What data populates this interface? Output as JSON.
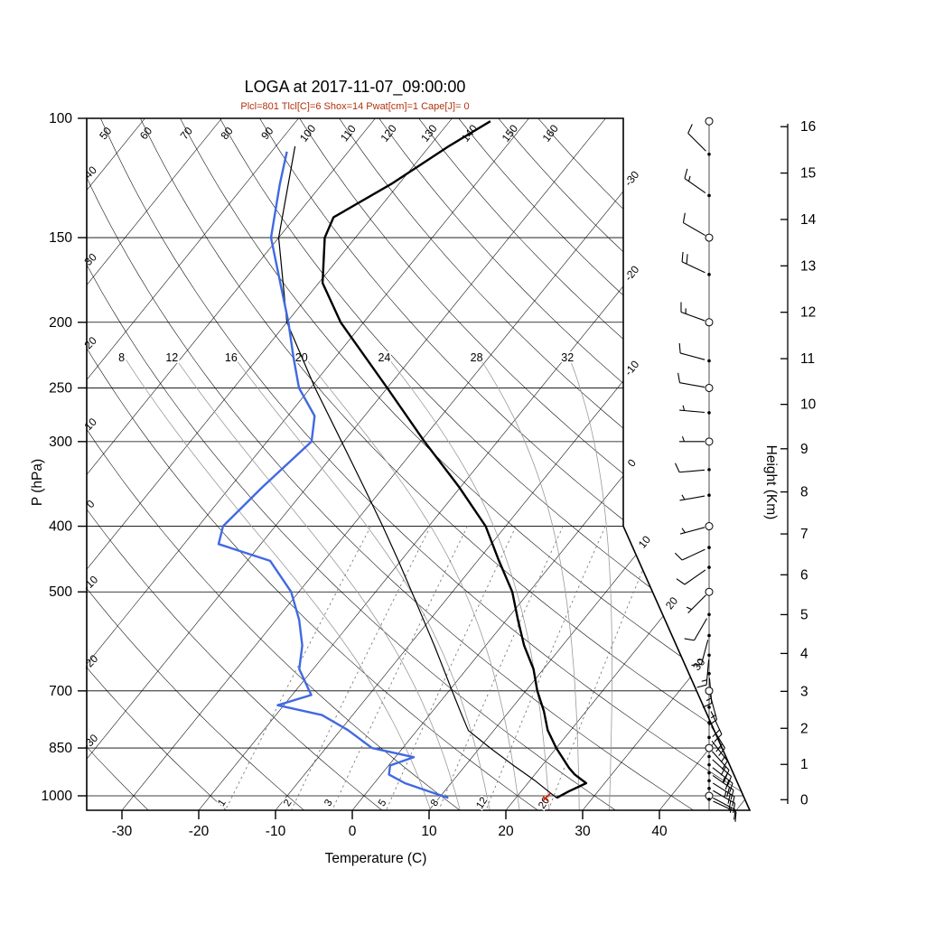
{
  "title": "LOGA at 2017-11-07_09:00:00",
  "subtitle": "Plcl=801 Tlcl[C]=6 Shox=14 Pwat[cm]=1 Cape[J]= 0",
  "chart_data": {
    "type": "skewt-logp-sounding",
    "station": "LOGA",
    "datetime": "2017-11-07_09:00:00",
    "indices": {
      "Plcl": 801,
      "Tlcl_C": 6,
      "Shox": 14,
      "Pwat_cm": 1,
      "Cape_J": 0
    },
    "axes": {
      "pressure": {
        "label": "P (hPa)",
        "unit": "hPa",
        "ticks": [
          100,
          150,
          200,
          250,
          300,
          400,
          500,
          700,
          850,
          1000
        ],
        "range": [
          100,
          1050
        ]
      },
      "temperature": {
        "label": "Temperature (C)",
        "unit": "C",
        "ticks": [
          -30,
          -20,
          -10,
          0,
          10,
          20,
          30,
          40
        ]
      },
      "height": {
        "label": "Height (Km)",
        "unit": "km",
        "ticks": [
          0,
          1,
          2,
          3,
          4,
          5,
          6,
          7,
          8,
          9,
          10,
          11,
          12,
          13,
          14,
          15,
          16
        ]
      }
    },
    "background": {
      "isotherms": {
        "start": -120,
        "end": 50,
        "step": 10,
        "labels": [
          -30,
          -20,
          -10,
          0,
          10,
          20,
          30
        ]
      },
      "dry_adiabats": {
        "start": -30,
        "end": 160,
        "step": 10,
        "left_edge_labels": [
          40,
          30,
          20,
          10,
          0,
          -10,
          -20,
          -30
        ],
        "top_edge_labels": [
          50,
          60,
          70,
          80,
          90,
          100,
          110,
          120,
          130,
          140,
          150,
          160
        ]
      },
      "moist_adiabats": {
        "labels": [
          8,
          12,
          16,
          20,
          24,
          28,
          32
        ]
      },
      "mixing_ratio_g_kg": [
        1,
        2,
        3,
        5,
        8,
        12,
        20
      ]
    },
    "temperature_profile": [
      [
        1007,
        25.3
      ],
      [
        985,
        26.2
      ],
      [
        958,
        27.6
      ],
      [
        930,
        25.2
      ],
      [
        910,
        23.8
      ],
      [
        850,
        20.0
      ],
      [
        800,
        17.0
      ],
      [
        750,
        14.5
      ],
      [
        700,
        11.5
      ],
      [
        650,
        8.7
      ],
      [
        600,
        5.0
      ],
      [
        550,
        1.5
      ],
      [
        500,
        -2.2
      ],
      [
        450,
        -7.2
      ],
      [
        400,
        -12.6
      ],
      [
        350,
        -20.2
      ],
      [
        300,
        -29.5
      ],
      [
        250,
        -40.0
      ],
      [
        200,
        -53.0
      ],
      [
        175,
        -59.5
      ],
      [
        150,
        -64.0
      ],
      [
        140,
        -65.0
      ],
      [
        125,
        -61.0
      ],
      [
        110,
        -57.5
      ],
      [
        101,
        -54.7
      ]
    ],
    "dewpoint_profile": [
      [
        1007,
        11.2
      ],
      [
        985,
        8.0
      ],
      [
        958,
        4.0
      ],
      [
        930,
        1.0
      ],
      [
        902,
        0.2
      ],
      [
        877,
        2.4
      ],
      [
        850,
        -4.0
      ],
      [
        800,
        -9.0
      ],
      [
        760,
        -14.0
      ],
      [
        735,
        -20.8
      ],
      [
        710,
        -17.5
      ],
      [
        700,
        -18.2
      ],
      [
        650,
        -21.8
      ],
      [
        600,
        -23.9
      ],
      [
        550,
        -27.0
      ],
      [
        500,
        -31.0
      ],
      [
        450,
        -37.0
      ],
      [
        425,
        -45.5
      ],
      [
        400,
        -46.8
      ],
      [
        350,
        -45.8
      ],
      [
        300,
        -44.2
      ],
      [
        275,
        -46.5
      ],
      [
        250,
        -51.5
      ],
      [
        225,
        -55.5
      ],
      [
        200,
        -59.8
      ],
      [
        175,
        -65.0
      ],
      [
        150,
        -71.0
      ],
      [
        125,
        -75.5
      ],
      [
        112,
        -78.0
      ]
    ],
    "parcel_profile": [
      [
        1007,
        25.3
      ],
      [
        950,
        20.7
      ],
      [
        900,
        16.1
      ],
      [
        850,
        11.4
      ],
      [
        801,
        6.7
      ],
      [
        750,
        3.6
      ],
      [
        700,
        0.4
      ],
      [
        650,
        -3.0
      ],
      [
        600,
        -6.7
      ],
      [
        550,
        -10.8
      ],
      [
        500,
        -15.3
      ],
      [
        450,
        -20.3
      ],
      [
        400,
        -26.0
      ],
      [
        350,
        -32.6
      ],
      [
        300,
        -40.3
      ],
      [
        250,
        -49.4
      ],
      [
        200,
        -60.0
      ],
      [
        150,
        -70.0
      ],
      [
        110,
        -77.5
      ]
    ],
    "surface_marker": {
      "p": 1007,
      "T": 24.6
    },
    "winds": [
      {
        "p": 101,
        "spd": 2,
        "dir": 0,
        "marker": "circle"
      },
      {
        "p": 113,
        "spd": 10,
        "dir": 315,
        "marker": "dot"
      },
      {
        "p": 130,
        "spd": 15,
        "dir": 305,
        "marker": "dot"
      },
      {
        "p": 150,
        "spd": 10,
        "dir": 300,
        "marker": "circle"
      },
      {
        "p": 170,
        "spd": 20,
        "dir": 295,
        "marker": "dot"
      },
      {
        "p": 200,
        "spd": 15,
        "dir": 290,
        "marker": "circle"
      },
      {
        "p": 228,
        "spd": 10,
        "dir": 285,
        "marker": "dot"
      },
      {
        "p": 250,
        "spd": 10,
        "dir": 280,
        "marker": "circle"
      },
      {
        "p": 272,
        "spd": 5,
        "dir": 275,
        "marker": "dot"
      },
      {
        "p": 300,
        "spd": 5,
        "dir": 270,
        "marker": "circle"
      },
      {
        "p": 330,
        "spd": 10,
        "dir": 265,
        "marker": "dot"
      },
      {
        "p": 360,
        "spd": 5,
        "dir": 260,
        "marker": "dot"
      },
      {
        "p": 400,
        "spd": 5,
        "dir": 255,
        "marker": "circle"
      },
      {
        "p": 430,
        "spd": 10,
        "dir": 245,
        "marker": "dot"
      },
      {
        "p": 460,
        "spd": 10,
        "dir": 235,
        "marker": "dot"
      },
      {
        "p": 500,
        "spd": 5,
        "dir": 225,
        "marker": "circle"
      },
      {
        "p": 540,
        "spd": 10,
        "dir": 210,
        "marker": "dot"
      },
      {
        "p": 580,
        "spd": 15,
        "dir": 195,
        "marker": "dot"
      },
      {
        "p": 620,
        "spd": 15,
        "dir": 185,
        "marker": "dot"
      },
      {
        "p": 660,
        "spd": 15,
        "dir": 175,
        "marker": "dot"
      },
      {
        "p": 700,
        "spd": 15,
        "dir": 165,
        "marker": "circle"
      },
      {
        "p": 740,
        "spd": 20,
        "dir": 155,
        "marker": "dot"
      },
      {
        "p": 780,
        "spd": 20,
        "dir": 148,
        "marker": "dot"
      },
      {
        "p": 820,
        "spd": 15,
        "dir": 142,
        "marker": "dot"
      },
      {
        "p": 850,
        "spd": 20,
        "dir": 138,
        "marker": "circle"
      },
      {
        "p": 875,
        "spd": 20,
        "dir": 132,
        "marker": "dot"
      },
      {
        "p": 900,
        "spd": 25,
        "dir": 128,
        "marker": "dot"
      },
      {
        "p": 925,
        "spd": 20,
        "dir": 125,
        "marker": "dot"
      },
      {
        "p": 950,
        "spd": 25,
        "dir": 122,
        "marker": "dot"
      },
      {
        "p": 975,
        "spd": 20,
        "dir": 120,
        "marker": "dot"
      },
      {
        "p": 1000,
        "spd": 15,
        "dir": 118,
        "marker": "circle"
      },
      {
        "p": 1012,
        "spd": 10,
        "dir": 115,
        "marker": "dot"
      }
    ]
  },
  "colors": {
    "temperature": "#000000",
    "dewpoint": "#4169e1",
    "parcel": "#000000",
    "subtitle": "#b2330e",
    "moist_adiabat": "#9a9a9a",
    "mixing_ratio": "#777777",
    "wind_barb": "#000000",
    "surface_marker": "#cc2200"
  }
}
